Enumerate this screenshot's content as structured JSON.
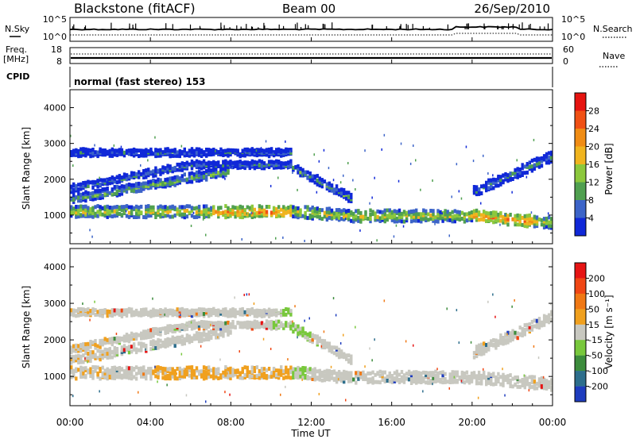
{
  "header": {
    "station": "Blackstone (fitACF)",
    "beam": "Beam 00",
    "date": "26/Sep/2010"
  },
  "top_panels": {
    "nsky_label": "N.Sky",
    "nsky_ticks": [
      "10^5",
      "10^0"
    ],
    "nsearch_label": "N.Search",
    "nsearch_ticks": [
      "10^5",
      "10^0"
    ],
    "freq_label_1": "Freq.",
    "freq_label_2": "[MHz]",
    "freq_ticks": [
      "18",
      "8"
    ],
    "nave_label": "Nave",
    "nave_ticks": [
      "60",
      "0"
    ],
    "cpid_label": "CPID",
    "cpid_text": "normal (fast stereo) 153"
  },
  "chart_data": [
    {
      "type": "heatmap",
      "name": "power",
      "ylabel": "Slant Range [km]",
      "ylim": [
        200,
        4500
      ],
      "yticks": [
        1000,
        2000,
        3000,
        4000
      ],
      "xlim": [
        0,
        24
      ],
      "colorbar_label": "Power [dB]",
      "colorbar_ticks": [
        "28",
        "24",
        "20",
        "16",
        "12",
        "8",
        "4"
      ],
      "colors": [
        "#1028d8",
        "#3c64c8",
        "#50a050",
        "#8cc83c",
        "#f0b41e",
        "#f08c14",
        "#f05014",
        "#e61410"
      ]
    },
    {
      "type": "heatmap",
      "name": "velocity",
      "ylabel": "Slant Range [km]",
      "ylim": [
        200,
        4500
      ],
      "yticks": [
        1000,
        2000,
        3000,
        4000
      ],
      "xlim": [
        0,
        24
      ],
      "xticks": [
        "00:00",
        "04:00",
        "08:00",
        "12:00",
        "16:00",
        "20:00",
        "00:00"
      ],
      "xlabel": "Time UT",
      "colorbar_label": "Velocity [m s⁻¹]",
      "colorbar_ticks": [
        "200",
        "100",
        "50",
        "15",
        "-15",
        "-50",
        "-100",
        "-200"
      ],
      "colors": [
        "#1e3cbe",
        "#2d6e8c",
        "#3c8c3c",
        "#78c83c",
        "#c8c8c0",
        "#f0a01e",
        "#f07814",
        "#f04614",
        "#e61414"
      ]
    }
  ]
}
